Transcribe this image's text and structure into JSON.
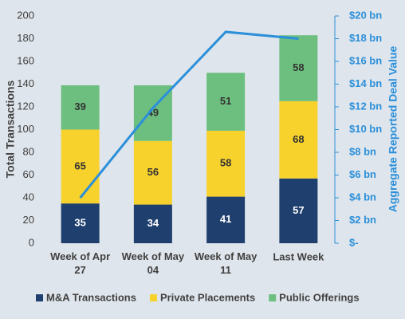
{
  "chart_data": {
    "type": "stacked_bar_line",
    "categories": [
      "Week of Apr 27",
      "Week of May 04",
      "Week of May 11",
      "Last Week"
    ],
    "series": [
      {
        "name": "M&A Transactions",
        "color": "#1f3f6e",
        "label_color": "#ffffff",
        "values": [
          35,
          34,
          41,
          57
        ]
      },
      {
        "name": "Private Placements",
        "color": "#f7d22c",
        "label_color": "#333333",
        "values": [
          65,
          56,
          58,
          68
        ]
      },
      {
        "name": "Public Offerings",
        "color": "#6dbf7f",
        "label_color": "#333333",
        "values": [
          39,
          49,
          51,
          58
        ]
      }
    ],
    "line": {
      "color": "#2b8fd9",
      "axis": "y2",
      "values": [
        4,
        11.9,
        18.6,
        18.0
      ]
    },
    "ylabel": "Total Transactions",
    "y2label": "Aggregate Reported Deal Value",
    "ylim": [
      0,
      200
    ],
    "yticks": [
      0,
      20,
      40,
      60,
      80,
      100,
      120,
      140,
      160,
      180,
      200
    ],
    "y2lim": [
      0,
      20
    ],
    "y2ticks": [
      {
        "value": 0,
        "label": "$-"
      },
      {
        "value": 2,
        "label": "$2 bn"
      },
      {
        "value": 4,
        "label": "$4 bn"
      },
      {
        "value": 6,
        "label": "$6 bn"
      },
      {
        "value": 8,
        "label": "$8 bn"
      },
      {
        "value": 10,
        "label": "$10 bn"
      },
      {
        "value": 12,
        "label": "$12 bn"
      },
      {
        "value": 14,
        "label": "$14 bn"
      },
      {
        "value": 16,
        "label": "$16 bn"
      },
      {
        "value": 18,
        "label": "$18 bn"
      },
      {
        "value": 20,
        "label": "$20 bn"
      }
    ],
    "legend": "bottom"
  }
}
